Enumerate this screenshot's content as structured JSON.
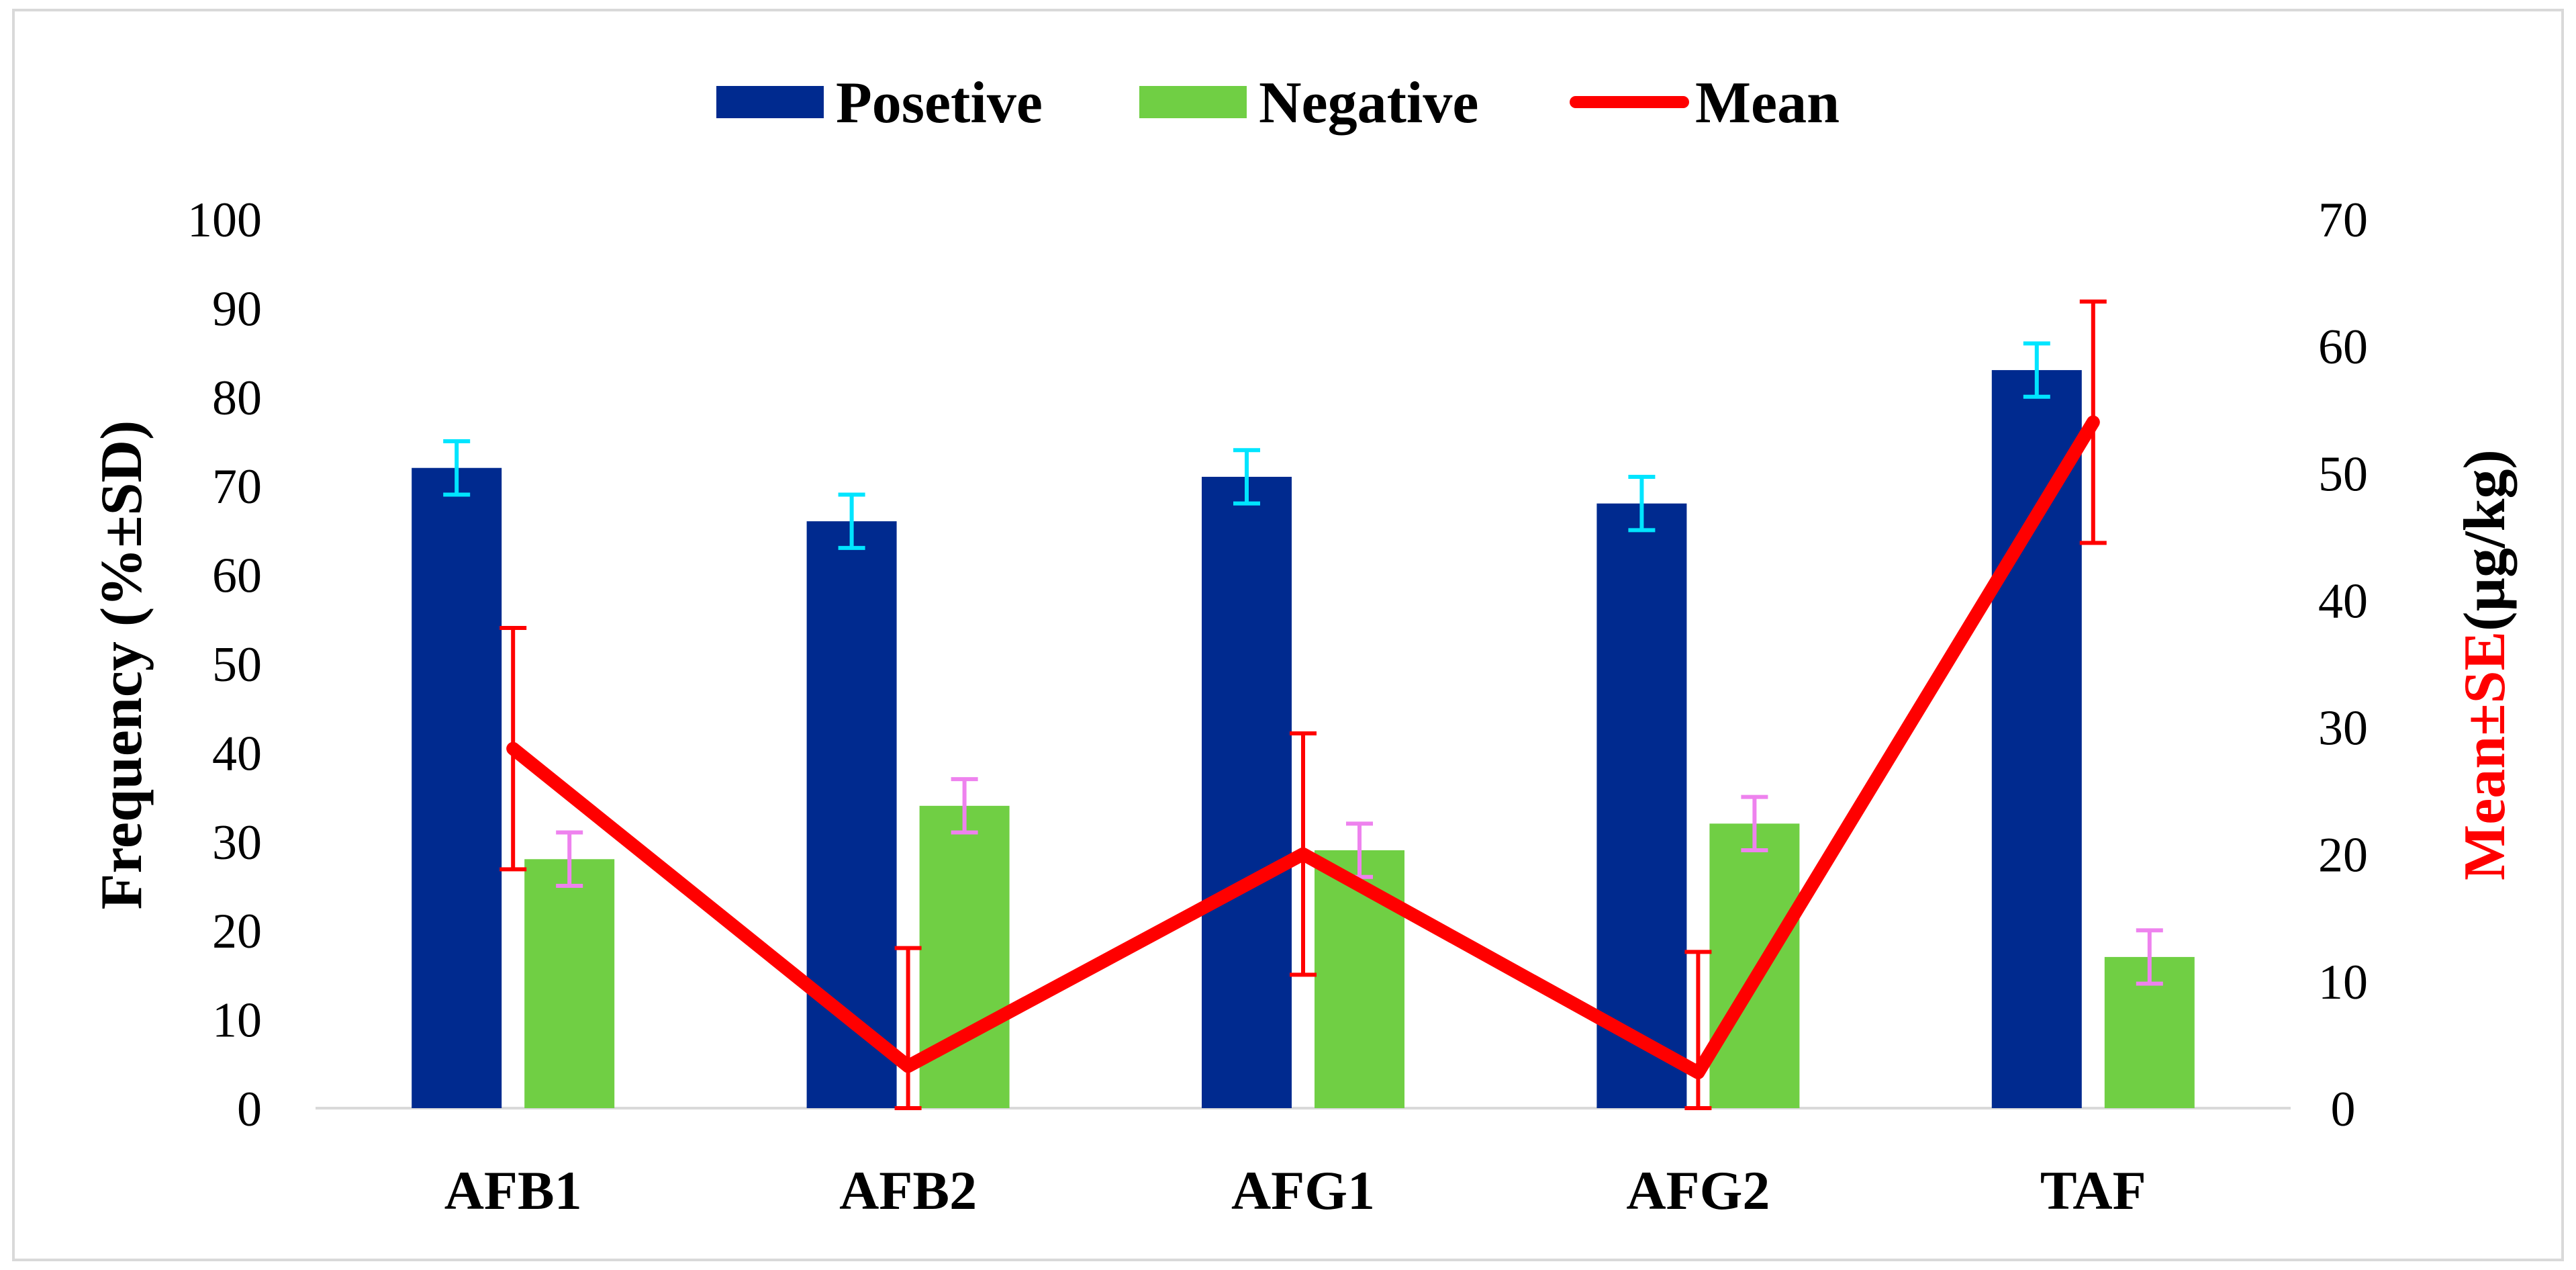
{
  "chart_data": {
    "type": "bar",
    "categories": [
      "AFB1",
      "AFB2",
      "AFG1",
      "AFG2",
      "TAF"
    ],
    "series": [
      {
        "name": "Posetive",
        "axis": "left",
        "color": "#002A8F",
        "error_color": "#00E5FF",
        "values": [
          72,
          66,
          71,
          68,
          83
        ],
        "errors": [
          3,
          3,
          3,
          3,
          3
        ]
      },
      {
        "name": "Negative",
        "axis": "left",
        "color": "#70CF44",
        "error_color": "#EE82EE",
        "values": [
          28,
          34,
          29,
          32,
          17
        ],
        "errors": [
          3,
          3,
          3,
          3,
          3
        ]
      }
    ],
    "line_series": {
      "name": "Mean",
      "type": "line",
      "axis": "right",
      "color": "#FF0000",
      "values": [
        28.3,
        3.3,
        20,
        2.8,
        54
      ],
      "errors": [
        9.5,
        9.3,
        9.5,
        9.5,
        9.5
      ]
    },
    "y_left": {
      "label": "Frequency (%±SD)",
      "ylim": [
        0,
        100
      ],
      "ticks": [
        "0",
        "10",
        "20",
        "30",
        "40",
        "50",
        "60",
        "70",
        "80",
        "90",
        "100"
      ]
    },
    "y_right": {
      "label_prefix": "Mean±SE",
      "label_suffix": "(µg/kg)",
      "ylim": [
        0,
        70
      ],
      "ticks": [
        "0",
        "10",
        "20",
        "30",
        "40",
        "50",
        "60",
        "70"
      ],
      "prefix_color": "#FF0000"
    },
    "legend": {
      "placement": "top-center",
      "items": [
        {
          "label": "Posetive",
          "kind": "bar",
          "color": "#002A8F"
        },
        {
          "label": "Negative",
          "kind": "bar",
          "color": "#70CF44"
        },
        {
          "label": "Mean",
          "kind": "line",
          "color": "#FF0000"
        }
      ]
    },
    "grid": false
  }
}
